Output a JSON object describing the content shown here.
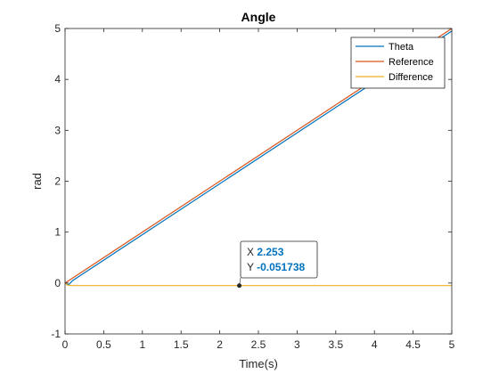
{
  "chart_data": {
    "type": "line",
    "title": "Angle",
    "xlabel": "Time(s)",
    "ylabel": "rad",
    "xlim": [
      0,
      5
    ],
    "ylim": [
      -1,
      5
    ],
    "xticks": [
      0,
      0.5,
      1,
      1.5,
      2,
      2.5,
      3,
      3.5,
      4,
      4.5,
      5
    ],
    "xtick_labels": [
      "0",
      "0.5",
      "1",
      "1.5",
      "2",
      "2.5",
      "3",
      "3.5",
      "4",
      "4.5",
      "5"
    ],
    "yticks": [
      -1,
      0,
      1,
      2,
      3,
      4,
      5
    ],
    "ytick_labels": [
      "-1",
      "0",
      "1",
      "2",
      "3",
      "4",
      "5"
    ],
    "grid": false,
    "legend_position": "top-right",
    "series": [
      {
        "name": "Theta",
        "color": "#0072BD",
        "x": [
          0,
          0.02,
          0.05,
          0.1,
          5
        ],
        "y": [
          0.0,
          -0.02,
          -0.03,
          0.05,
          4.95
        ]
      },
      {
        "name": "Reference",
        "color": "#D95319",
        "x": [
          0,
          5
        ],
        "y": [
          0,
          5
        ]
      },
      {
        "name": "Difference",
        "color": "#EDB120",
        "x": [
          0,
          0.03,
          0.08,
          0.15,
          5
        ],
        "y": [
          0,
          -0.04,
          -0.05,
          -0.05,
          -0.05
        ]
      }
    ],
    "datatip": {
      "series": "Difference",
      "x": 2.253,
      "y": -0.051738,
      "x_label": "X",
      "y_label": "Y",
      "x_text": "2.253",
      "y_text": "-0.051738"
    }
  }
}
